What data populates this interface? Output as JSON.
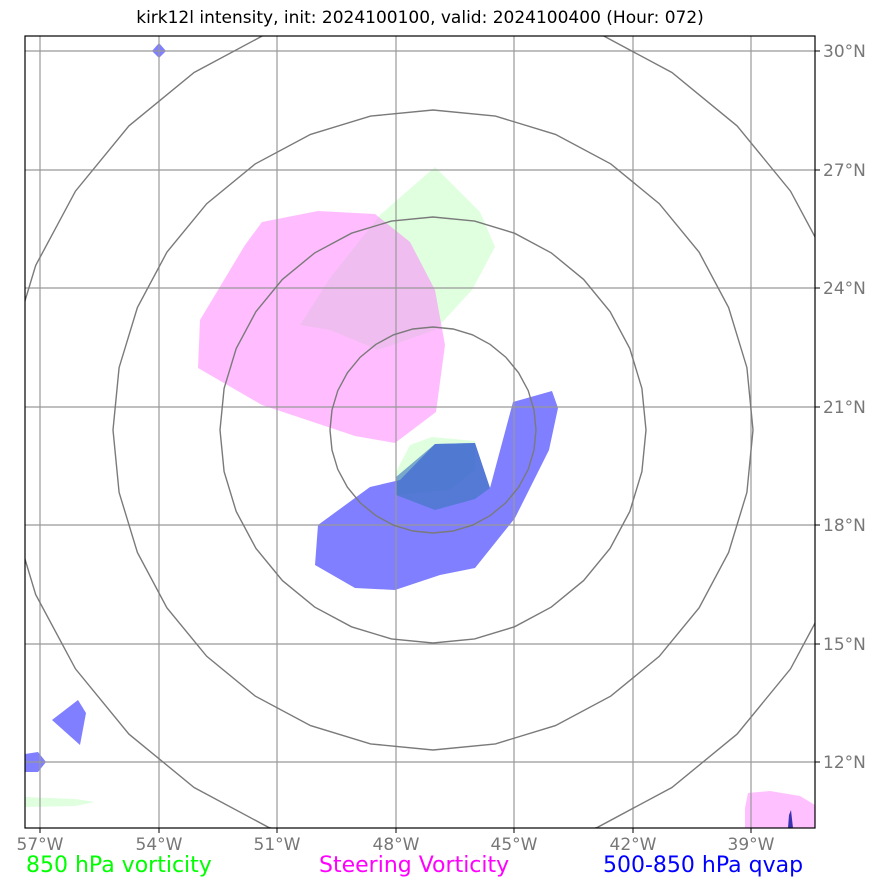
{
  "title": "kirk12l intensity, init: 2024100100, valid: 2024100400 (Hour: 072)",
  "colors": {
    "vort850": "#00ff00",
    "steering": "#ff00ff",
    "qvap": "#0000ff",
    "grid": "#999999",
    "rings": "#7a7a7a"
  },
  "legend": {
    "vort850": "850 hPa vorticity",
    "steering": "Steering Vorticity",
    "qvap": "500-850 hPa qvap"
  },
  "lon_labels": [
    "57°W",
    "54°W",
    "51°W",
    "48°W",
    "45°W",
    "42°W",
    "39°W"
  ],
  "lat_labels": [
    "30°N",
    "27°N",
    "24°N",
    "21°N",
    "18°N",
    "15°N",
    "12°N"
  ]
}
